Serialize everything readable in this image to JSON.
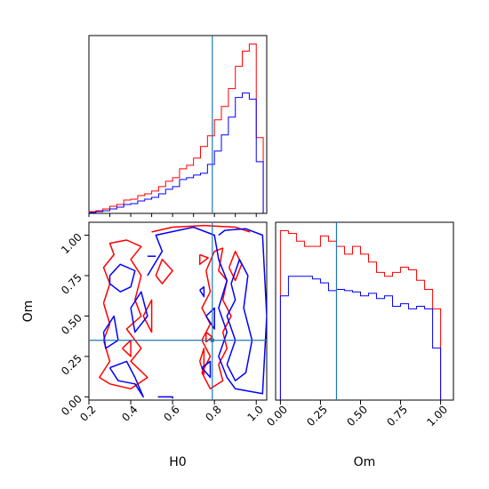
{
  "chart_data": {
    "type": "corner",
    "parameters": [
      "H0",
      "Om"
    ],
    "truth": {
      "H0": 0.79,
      "Om": 0.35
    },
    "colors": {
      "series_a": "#ff0000",
      "series_b": "#0000ff",
      "truth": "#1f77b4"
    },
    "panels": [
      {
        "id": "hist-H0",
        "type": "histogram",
        "xlabel": "",
        "xlim": [
          0.2,
          1.05
        ],
        "bin_edges": [
          0.2,
          0.2333,
          0.2667,
          0.3,
          0.3333,
          0.3667,
          0.4,
          0.4333,
          0.4667,
          0.5,
          0.5333,
          0.5667,
          0.6,
          0.6333,
          0.6667,
          0.7,
          0.7333,
          0.7667,
          0.8,
          0.8333,
          0.8667,
          0.9,
          0.9333,
          0.9667,
          1.0,
          1.0333
        ],
        "series": [
          {
            "color": "red",
            "values": [
              2,
              3,
              5,
              8,
              10,
              15,
              16,
              20,
              22,
              25,
              30,
              36,
              40,
              50,
              54,
              62,
              75,
              87,
              105,
              120,
              140,
              165,
              182,
              190,
              85
            ]
          },
          {
            "color": "blue",
            "values": [
              1,
              2,
              3,
              5,
              7,
              10,
              11,
              14,
              16,
              18,
              22,
              27,
              30,
              38,
              40,
              43,
              45,
              55,
              70,
              88,
              108,
              130,
              135,
              128,
              58
            ]
          }
        ]
      },
      {
        "id": "hist-Om",
        "type": "histogram",
        "xlabel": "Om",
        "xlim": [
          -0.03,
          1.08
        ],
        "bin_edges": [
          0.0,
          0.05,
          0.1,
          0.15,
          0.2,
          0.25,
          0.3,
          0.35,
          0.4,
          0.45,
          0.5,
          0.55,
          0.6,
          0.65,
          0.7,
          0.75,
          0.8,
          0.85,
          0.9,
          0.95,
          1.0
        ],
        "series": [
          {
            "color": "red",
            "values": [
              130,
              128,
              122,
              118,
              118,
              126,
              122,
              118,
              112,
              118,
              112,
              106,
              98,
              95,
              98,
              102,
              100,
              92,
              85,
              70
            ]
          },
          {
            "color": "blue",
            "values": [
              80,
              95,
              95,
              95,
              93,
              90,
              84,
              85,
              84,
              83,
              80,
              82,
              78,
              80,
              72,
              74,
              70,
              72,
              70,
              40
            ]
          }
        ]
      },
      {
        "id": "contour-H0-Om",
        "type": "contour",
        "xlabel": "H0",
        "ylabel": "Om",
        "xlim": [
          0.2,
          1.05
        ],
        "ylim": [
          -0.02,
          1.08
        ],
        "series": [
          {
            "color": "red",
            "contours": [
              [
                [
                  0.5,
                  1.02
                ],
                [
                  0.6,
                  1.05
                ],
                [
                  0.75,
                  1.06
                ],
                [
                  0.9,
                  1.05
                ],
                [
                  0.97,
                  1.02
                ]
              ],
              [
                [
                  0.27,
                  0.58
                ],
                [
                  0.3,
                  0.7
                ],
                [
                  0.27,
                  0.8
                ],
                [
                  0.32,
                  0.88
                ],
                [
                  0.3,
                  0.95
                ],
                [
                  0.38,
                  0.97
                ],
                [
                  0.45,
                  0.93
                ],
                [
                  0.4,
                  0.85
                ],
                [
                  0.45,
                  0.75
                ],
                [
                  0.42,
                  0.6
                ],
                [
                  0.45,
                  0.5
                ],
                [
                  0.38,
                  0.42
                ],
                [
                  0.45,
                  0.3
                ],
                [
                  0.4,
                  0.22
                ],
                [
                  0.48,
                  0.12
                ],
                [
                  0.4,
                  0.05
                ],
                [
                  0.3,
                  0.08
                ],
                [
                  0.25,
                  0.12
                ],
                [
                  0.3,
                  0.22
                ],
                [
                  0.27,
                  0.35
                ],
                [
                  0.3,
                  0.45
                ],
                [
                  0.27,
                  0.58
                ]
              ],
              [
                [
                  0.52,
                  0.75
                ],
                [
                  0.55,
                  0.85
                ],
                [
                  0.6,
                  0.78
                ],
                [
                  0.55,
                  0.7
                ],
                [
                  0.52,
                  0.75
                ]
              ],
              [
                [
                  0.46,
                  0.5
                ],
                [
                  0.5,
                  0.6
                ],
                [
                  0.5,
                  0.4
                ],
                [
                  0.46,
                  0.5
                ]
              ],
              [
                [
                  0.36,
                  0.3
                ],
                [
                  0.4,
                  0.35
                ],
                [
                  0.4,
                  0.25
                ],
                [
                  0.36,
                  0.3
                ]
              ],
              [
                [
                  0.76,
                  0.78
                ],
                [
                  0.8,
                  0.9
                ],
                [
                  0.84,
                  0.92
                ],
                [
                  0.82,
                  0.78
                ],
                [
                  0.86,
                  0.72
                ],
                [
                  0.84,
                  0.6
                ],
                [
                  0.88,
                  0.5
                ],
                [
                  0.84,
                  0.4
                ],
                [
                  0.86,
                  0.3
                ],
                [
                  0.82,
                  0.2
                ],
                [
                  0.84,
                  0.1
                ],
                [
                  0.78,
                  0.05
                ],
                [
                  0.74,
                  0.15
                ],
                [
                  0.78,
                  0.25
                ],
                [
                  0.74,
                  0.35
                ],
                [
                  0.78,
                  0.45
                ],
                [
                  0.74,
                  0.55
                ],
                [
                  0.78,
                  0.65
                ],
                [
                  0.76,
                  0.78
                ]
              ],
              [
                [
                  0.87,
                  0.8
                ],
                [
                  0.9,
                  0.9
                ],
                [
                  0.93,
                  0.82
                ],
                [
                  0.9,
                  0.72
                ],
                [
                  0.87,
                  0.8
                ]
              ],
              [
                [
                  0.73,
                  0.88
                ],
                [
                  0.77,
                  0.86
                ],
                [
                  0.73,
                  0.82
                ],
                [
                  0.73,
                  0.88
                ]
              ],
              [
                [
                  0.76,
                  0.4
                ],
                [
                  0.79,
                  0.37
                ],
                [
                  0.76,
                  0.34
                ],
                [
                  0.76,
                  0.4
                ]
              ],
              [
                [
                  0.73,
                  0.22
                ],
                [
                  0.75,
                  0.3
                ],
                [
                  0.75,
                  0.14
                ],
                [
                  0.73,
                  0.22
                ]
              ]
            ]
          },
          {
            "color": "blue",
            "contours": [
              [
                [
                  0.48,
                  0.75
                ],
                [
                  0.55,
                  0.9
                ],
                [
                  0.52,
                  1.0
                ],
                [
                  0.7,
                  1.05
                ],
                [
                  0.8,
                  1.0
                ],
                [
                  0.82,
                  0.85
                ],
                [
                  0.86,
                  0.72
                ],
                [
                  0.82,
                  0.55
                ],
                [
                  0.86,
                  0.4
                ],
                [
                  0.82,
                  0.25
                ],
                [
                  0.86,
                  0.12
                ],
                [
                  0.9,
                  0.05
                ],
                [
                  1.03,
                  0.02
                ],
                [
                  1.05,
                  0.5
                ],
                [
                  1.03,
                  1.0
                ],
                [
                  0.95,
                  1.04
                ],
                [
                  0.85,
                  1.03
                ],
                [
                  0.82,
                  1.0
                ]
              ],
              [
                [
                  0.3,
                  0.75
                ],
                [
                  0.35,
                  0.82
                ],
                [
                  0.42,
                  0.78
                ],
                [
                  0.4,
                  0.68
                ],
                [
                  0.35,
                  0.65
                ],
                [
                  0.3,
                  0.7
                ],
                [
                  0.3,
                  0.75
                ]
              ],
              [
                [
                  0.4,
                  0.55
                ],
                [
                  0.45,
                  0.65
                ],
                [
                  0.48,
                  0.5
                ],
                [
                  0.42,
                  0.4
                ],
                [
                  0.4,
                  0.55
                ]
              ],
              [
                [
                  0.27,
                  0.4
                ],
                [
                  0.32,
                  0.5
                ],
                [
                  0.34,
                  0.35
                ],
                [
                  0.28,
                  0.3
                ],
                [
                  0.27,
                  0.4
                ]
              ],
              [
                [
                  0.3,
                  0.18
                ],
                [
                  0.38,
                  0.22
                ],
                [
                  0.42,
                  0.12
                ],
                [
                  0.46,
                  0.0
                ],
                [
                  0.42,
                  0.08
                ],
                [
                  0.34,
                  0.1
                ],
                [
                  0.3,
                  0.18
                ]
              ],
              [
                [
                  0.53,
                  0.0
                ],
                [
                  0.6,
                  0.0
                ],
                [
                  0.6,
                  -0.01
                ]
              ],
              [
                [
                  0.88,
                  0.7
                ],
                [
                  0.92,
                  0.85
                ],
                [
                  0.96,
                  0.75
                ],
                [
                  0.94,
                  0.55
                ],
                [
                  0.98,
                  0.35
                ],
                [
                  0.95,
                  0.15
                ],
                [
                  0.9,
                  0.1
                ],
                [
                  0.86,
                  0.2
                ],
                [
                  0.9,
                  0.35
                ],
                [
                  0.86,
                  0.5
                ],
                [
                  0.9,
                  0.6
                ],
                [
                  0.88,
                  0.7
                ]
              ],
              [
                [
                  0.76,
                  0.5
                ],
                [
                  0.8,
                  0.55
                ],
                [
                  0.8,
                  0.42
                ],
                [
                  0.76,
                  0.5
                ]
              ],
              [
                [
                  0.74,
                  0.18
                ],
                [
                  0.78,
                  0.22
                ],
                [
                  0.78,
                  0.12
                ],
                [
                  0.74,
                  0.18
                ]
              ],
              [
                [
                  0.73,
                  0.66
                ],
                [
                  0.75,
                  0.68
                ],
                [
                  0.75,
                  0.62
                ],
                [
                  0.73,
                  0.66
                ]
              ],
              [
                [
                  0.48,
                  0.87
                ],
                [
                  0.52,
                  0.87
                ]
              ]
            ]
          }
        ]
      }
    ],
    "ticks": {
      "H0": [
        "0.2",
        "0.4",
        "0.6",
        "0.8",
        "1.0"
      ],
      "Om_y": [
        "0.00",
        "0.25",
        "0.50",
        "0.75",
        "1.00"
      ],
      "Om_x": [
        "0.00",
        "0.25",
        "0.50",
        "0.75",
        "1.00"
      ]
    }
  }
}
